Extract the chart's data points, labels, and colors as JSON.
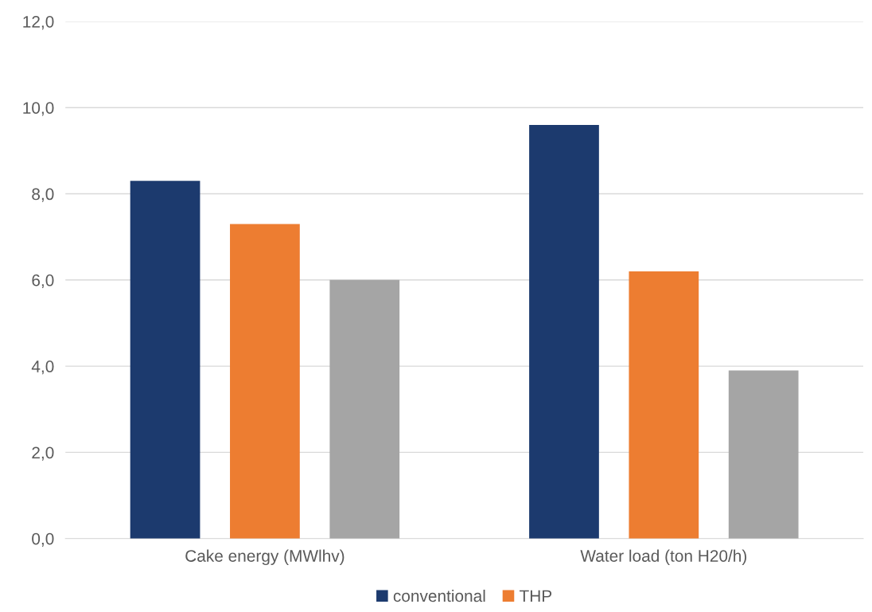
{
  "chart_data": {
    "type": "bar",
    "categories": [
      "Cake energy (MWlhv)",
      "Water load (ton H20/h)"
    ],
    "series": [
      {
        "name": "conventional",
        "color": "#1c3a6e",
        "values": [
          8.3,
          9.6
        ]
      },
      {
        "name": "THP",
        "color": "#ed7d31",
        "values": [
          7.3,
          6.2
        ]
      },
      {
        "color": "#a5a5a5",
        "values": [
          6.0,
          3.9
        ]
      }
    ],
    "ylim": [
      0,
      12
    ],
    "yticks": [
      {
        "value": 0,
        "label": "0,0"
      },
      {
        "value": 2,
        "label": "2,0"
      },
      {
        "value": 4,
        "label": "4,0"
      },
      {
        "value": 6,
        "label": "6,0"
      },
      {
        "value": 8,
        "label": "8,0"
      },
      {
        "value": 10,
        "label": "10,0"
      },
      {
        "value": 12,
        "label": "12,0"
      }
    ],
    "grid": "y",
    "legend": "bottom"
  }
}
